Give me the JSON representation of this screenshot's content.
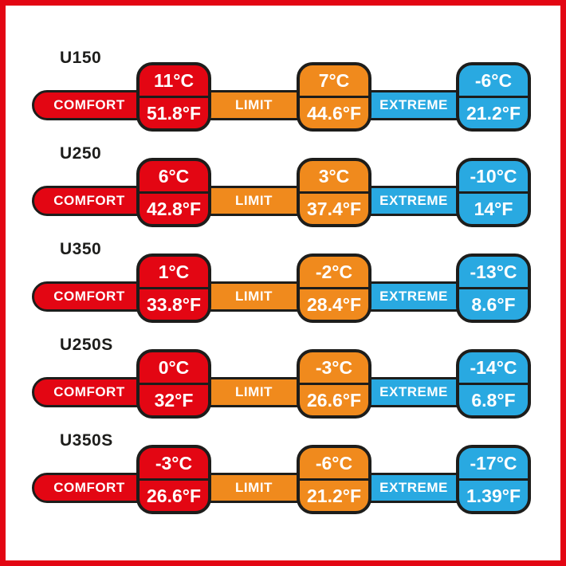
{
  "colors": {
    "comfort": "#e30613",
    "limit": "#f08a1d",
    "extreme": "#29a9e1",
    "outline": "#1d1d1b",
    "frame": "#e30613",
    "text_light": "#ffffff",
    "text_dark": "#1d1d1b"
  },
  "rows": [
    {
      "model": "U150",
      "comfort": {
        "label": "COMFORT",
        "c": "11°C",
        "f": "51.8°F"
      },
      "limit": {
        "label": "LIMIT",
        "c": "7°C",
        "f": "44.6°F"
      },
      "extreme": {
        "label": "EXTREME",
        "c": "-6°C",
        "f": "21.2°F"
      }
    },
    {
      "model": "U250",
      "comfort": {
        "label": "COMFORT",
        "c": "6°C",
        "f": "42.8°F"
      },
      "limit": {
        "label": "LIMIT",
        "c": "3°C",
        "f": "37.4°F"
      },
      "extreme": {
        "label": "EXTREME",
        "c": "-10°C",
        "f": "14°F"
      }
    },
    {
      "model": "U350",
      "comfort": {
        "label": "COMFORT",
        "c": "1°C",
        "f": "33.8°F"
      },
      "limit": {
        "label": "LIMIT",
        "c": "-2°C",
        "f": "28.4°F"
      },
      "extreme": {
        "label": "EXTREME",
        "c": "-13°C",
        "f": "8.6°F"
      }
    },
    {
      "model": "U250S",
      "comfort": {
        "label": "COMFORT",
        "c": "0°C",
        "f": "32°F"
      },
      "limit": {
        "label": "LIMIT",
        "c": "-3°C",
        "f": "26.6°F"
      },
      "extreme": {
        "label": "EXTREME",
        "c": "-14°C",
        "f": "6.8°F"
      }
    },
    {
      "model": "U350S",
      "comfort": {
        "label": "COMFORT",
        "c": "-3°C",
        "f": "26.6°F"
      },
      "limit": {
        "label": "LIMIT",
        "c": "-6°C",
        "f": "21.2°F"
      },
      "extreme": {
        "label": "EXTREME",
        "c": "-17°C",
        "f": "1.39°F"
      }
    }
  ],
  "chart_data": {
    "type": "table",
    "title": "Sleeping bag temperature ratings",
    "rows": [
      "U150",
      "U250",
      "U350",
      "U250S",
      "U350S"
    ],
    "columns": [
      "COMFORT",
      "LIMIT",
      "EXTREME"
    ],
    "values_celsius": [
      [
        11,
        7,
        -6
      ],
      [
        6,
        3,
        -10
      ],
      [
        1,
        -2,
        -13
      ],
      [
        0,
        -3,
        -14
      ],
      [
        -3,
        -6,
        -17
      ]
    ],
    "values_fahrenheit": [
      [
        51.8,
        44.6,
        21.2
      ],
      [
        42.8,
        37.4,
        14
      ],
      [
        33.8,
        28.4,
        8.6
      ],
      [
        32,
        26.6,
        6.8
      ],
      [
        26.6,
        21.2,
        1.39
      ]
    ]
  }
}
